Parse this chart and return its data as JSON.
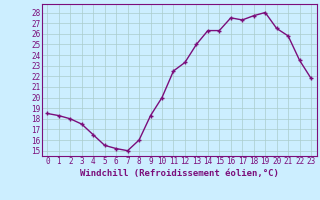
{
  "hours": [
    0,
    1,
    2,
    3,
    4,
    5,
    6,
    7,
    8,
    9,
    10,
    11,
    12,
    13,
    14,
    15,
    16,
    17,
    18,
    19,
    20,
    21,
    22,
    23
  ],
  "values": [
    18.5,
    18.3,
    18.0,
    17.5,
    16.5,
    15.5,
    15.2,
    15.0,
    16.0,
    18.3,
    20.0,
    22.5,
    23.3,
    25.0,
    26.3,
    26.3,
    27.5,
    27.3,
    27.7,
    28.0,
    26.5,
    25.8,
    23.5,
    21.8
  ],
  "line_color": "#7b0e7b",
  "marker": "+",
  "bg_color": "#cceeff",
  "grid_color": "#aacccc",
  "ylabel_ticks": [
    15,
    16,
    17,
    18,
    19,
    20,
    21,
    22,
    23,
    24,
    25,
    26,
    27,
    28
  ],
  "xlabel": "Windchill (Refroidissement éolien,°C)",
  "ylim": [
    14.5,
    28.8
  ],
  "xlim": [
    -0.5,
    23.5
  ],
  "line_width": 1.0,
  "marker_size": 3.5,
  "tick_fontsize": 5.5,
  "xlabel_fontsize": 6.5
}
